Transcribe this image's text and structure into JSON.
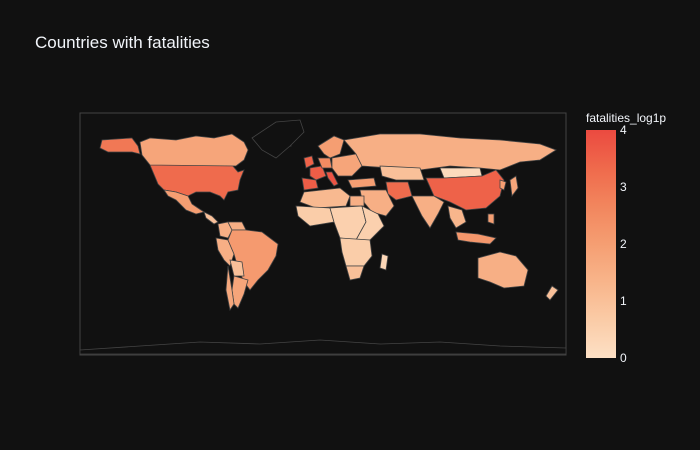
{
  "title": "Countries with fatalities",
  "colorbar": {
    "title": "fatalities_log1p",
    "range": [
      0,
      4
    ],
    "ticks": [
      "0",
      "1",
      "2",
      "3",
      "4"
    ],
    "colors": [
      "#fde0c5",
      "#facba6",
      "#f8b58b",
      "#f59e72",
      "#f2855d",
      "#ef6a4c",
      "#eb4a40"
    ]
  },
  "map": {
    "background": "#111111",
    "land_empty": "#111111",
    "border_color": "#444444",
    "countries": [
      {
        "name": "United States",
        "value": 3.3
      },
      {
        "name": "Canada",
        "value": 1.8
      },
      {
        "name": "Alaska",
        "value": 3.0
      },
      {
        "name": "Mexico",
        "value": 2.0
      },
      {
        "name": "Central America",
        "value": 1.0
      },
      {
        "name": "Colombia",
        "value": 1.5
      },
      {
        "name": "Venezuela",
        "value": 1.5
      },
      {
        "name": "Peru",
        "value": 1.5
      },
      {
        "name": "Brazil",
        "value": 2.1
      },
      {
        "name": "Bolivia",
        "value": 1.0
      },
      {
        "name": "Argentina",
        "value": 1.8
      },
      {
        "name": "Chile",
        "value": 1.7
      },
      {
        "name": "Iceland",
        "value": 0.3
      },
      {
        "name": "United Kingdom",
        "value": 3.5
      },
      {
        "name": "France",
        "value": 3.6
      },
      {
        "name": "Spain",
        "value": 3.6
      },
      {
        "name": "Italy",
        "value": 3.8
      },
      {
        "name": "Germany",
        "value": 2.5
      },
      {
        "name": "Scandinavia",
        "value": 2.0
      },
      {
        "name": "Eastern Europe",
        "value": 1.8
      },
      {
        "name": "Russia",
        "value": 1.5
      },
      {
        "name": "Turkey",
        "value": 2.0
      },
      {
        "name": "Iran",
        "value": 3.3
      },
      {
        "name": "Middle East",
        "value": 1.5
      },
      {
        "name": "Kazakhstan",
        "value": 1.0
      },
      {
        "name": "Mongolia",
        "value": 0.2
      },
      {
        "name": "China",
        "value": 3.5
      },
      {
        "name": "India",
        "value": 1.5
      },
      {
        "name": "Southeast Asia",
        "value": 1.3
      },
      {
        "name": "Japan",
        "value": 1.8
      },
      {
        "name": "Korea",
        "value": 2.0
      },
      {
        "name": "Indonesia",
        "value": 2.2
      },
      {
        "name": "Philippines",
        "value": 2.0
      },
      {
        "name": "Australia",
        "value": 1.5
      },
      {
        "name": "New Zealand",
        "value": 1.0
      },
      {
        "name": "North Africa",
        "value": 1.2
      },
      {
        "name": "Egypt",
        "value": 1.5
      },
      {
        "name": "West Africa",
        "value": 0.6
      },
      {
        "name": "Central Africa",
        "value": 0.5
      },
      {
        "name": "East Africa",
        "value": 0.5
      },
      {
        "name": "Southern Africa",
        "value": 0.6
      },
      {
        "name": "South Africa",
        "value": 1.0
      },
      {
        "name": "Madagascar",
        "value": 0.3
      },
      {
        "name": "Greenland",
        "value": null
      },
      {
        "name": "Antarctica",
        "value": null
      }
    ]
  }
}
